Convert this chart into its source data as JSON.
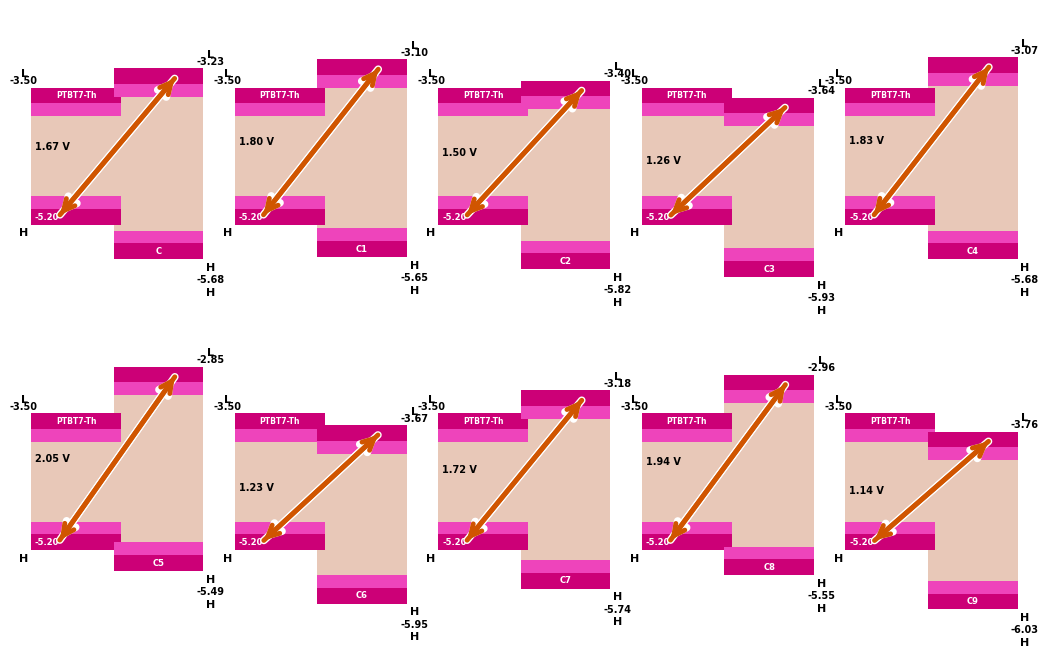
{
  "compounds": [
    "C",
    "C1",
    "C2",
    "C3",
    "C4",
    "C5",
    "C6",
    "C7",
    "C8",
    "C9"
  ],
  "ptbt7_lumo": -3.5,
  "ptbt7_homo": -5.2,
  "compound_lumo": [
    -3.23,
    -3.1,
    -3.4,
    -3.64,
    -3.07,
    -2.85,
    -3.67,
    -3.18,
    -2.96,
    -3.76
  ],
  "compound_homo": [
    -5.68,
    -5.65,
    -5.82,
    -5.93,
    -5.68,
    -5.49,
    -5.95,
    -5.74,
    -5.55,
    -6.03
  ],
  "voc": [
    "1.67 V",
    "1.80 V",
    "1.50 V",
    "1.26 V",
    "1.83 V",
    "2.05 V",
    "1.23 V",
    "1.72 V",
    "1.94 V",
    "1.14 V"
  ],
  "color_deep_pink": "#CC0077",
  "color_medium_pink": "#EE44BB",
  "color_beige": "#E8C8B8",
  "color_arrow": "#D05500",
  "color_bg": "#FFFFFF"
}
